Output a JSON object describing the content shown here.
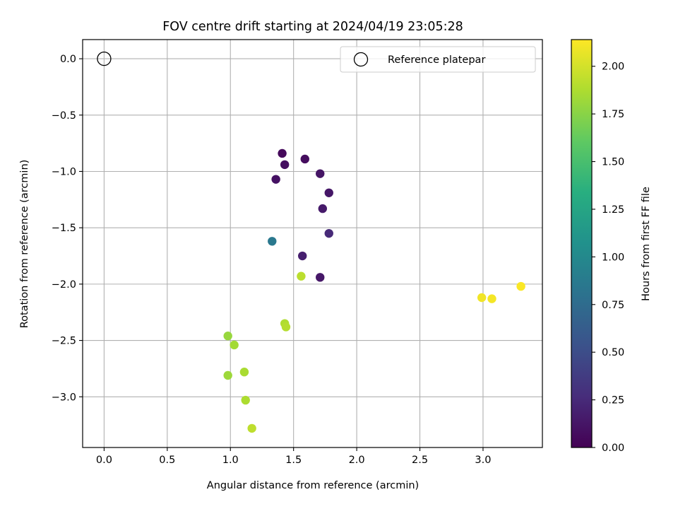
{
  "chart_data": {
    "type": "scatter",
    "title": "FOV centre drift starting at 2024/04/19 23:05:28",
    "xlabel": "Angular distance from reference (arcmin)",
    "ylabel": "Rotation from reference (arcmin)",
    "xlim": [
      -0.17,
      3.47
    ],
    "ylim": [
      -3.45,
      0.17
    ],
    "xticks": [
      0.0,
      0.5,
      1.0,
      1.5,
      2.0,
      2.5,
      3.0
    ],
    "xtick_labels": [
      "0.0",
      "0.5",
      "1.0",
      "1.5",
      "2.0",
      "2.5",
      "3.0"
    ],
    "yticks": [
      0.0,
      -0.5,
      -1.0,
      -1.5,
      -2.0,
      -2.5,
      -3.0
    ],
    "ytick_labels": [
      "0.0",
      "−0.5",
      "−1.0",
      "−1.5",
      "−2.0",
      "−2.5",
      "−3.0"
    ],
    "grid": true,
    "legend": {
      "placement": "upper-right",
      "label": "Reference platepar"
    },
    "reference": {
      "x": 0.0,
      "y": 0.0
    },
    "colorbar": {
      "label": "Hours from first FF file",
      "range": [
        0.0,
        2.14
      ],
      "ticks": [
        0.0,
        0.25,
        0.5,
        0.75,
        1.0,
        1.25,
        1.5,
        1.75,
        2.0
      ],
      "tick_labels": [
        "0.00",
        "0.25",
        "0.50",
        "0.75",
        "1.00",
        "1.25",
        "1.50",
        "1.75",
        "2.00"
      ],
      "colormap": "viridis"
    },
    "series": [
      {
        "points": [
          {
            "x": 1.41,
            "y": -0.84,
            "hours": 0.05
          },
          {
            "x": 1.59,
            "y": -0.89,
            "hours": 0.07
          },
          {
            "x": 1.43,
            "y": -0.94,
            "hours": 0.08
          },
          {
            "x": 1.36,
            "y": -1.07,
            "hours": 0.1
          },
          {
            "x": 1.71,
            "y": -1.02,
            "hours": 0.12
          },
          {
            "x": 1.78,
            "y": -1.19,
            "hours": 0.13
          },
          {
            "x": 1.73,
            "y": -1.33,
            "hours": 0.15
          },
          {
            "x": 1.78,
            "y": -1.55,
            "hours": 0.25
          },
          {
            "x": 1.57,
            "y": -1.75,
            "hours": 0.18
          },
          {
            "x": 1.71,
            "y": -1.94,
            "hours": 0.14
          },
          {
            "x": 1.33,
            "y": -1.62,
            "hours": 0.85
          },
          {
            "x": 1.56,
            "y": -1.93,
            "hours": 1.92
          },
          {
            "x": 1.43,
            "y": -2.35,
            "hours": 1.88
          },
          {
            "x": 1.44,
            "y": -2.38,
            "hours": 1.9
          },
          {
            "x": 0.98,
            "y": -2.46,
            "hours": 1.8
          },
          {
            "x": 1.03,
            "y": -2.54,
            "hours": 1.84
          },
          {
            "x": 1.11,
            "y": -2.78,
            "hours": 1.86
          },
          {
            "x": 0.98,
            "y": -2.81,
            "hours": 1.82
          },
          {
            "x": 1.12,
            "y": -3.03,
            "hours": 1.87
          },
          {
            "x": 1.17,
            "y": -3.28,
            "hours": 1.93
          },
          {
            "x": 2.99,
            "y": -2.12,
            "hours": 2.1
          },
          {
            "x": 3.07,
            "y": -2.13,
            "hours": 2.11
          },
          {
            "x": 3.3,
            "y": -2.02,
            "hours": 2.13
          }
        ]
      }
    ]
  }
}
